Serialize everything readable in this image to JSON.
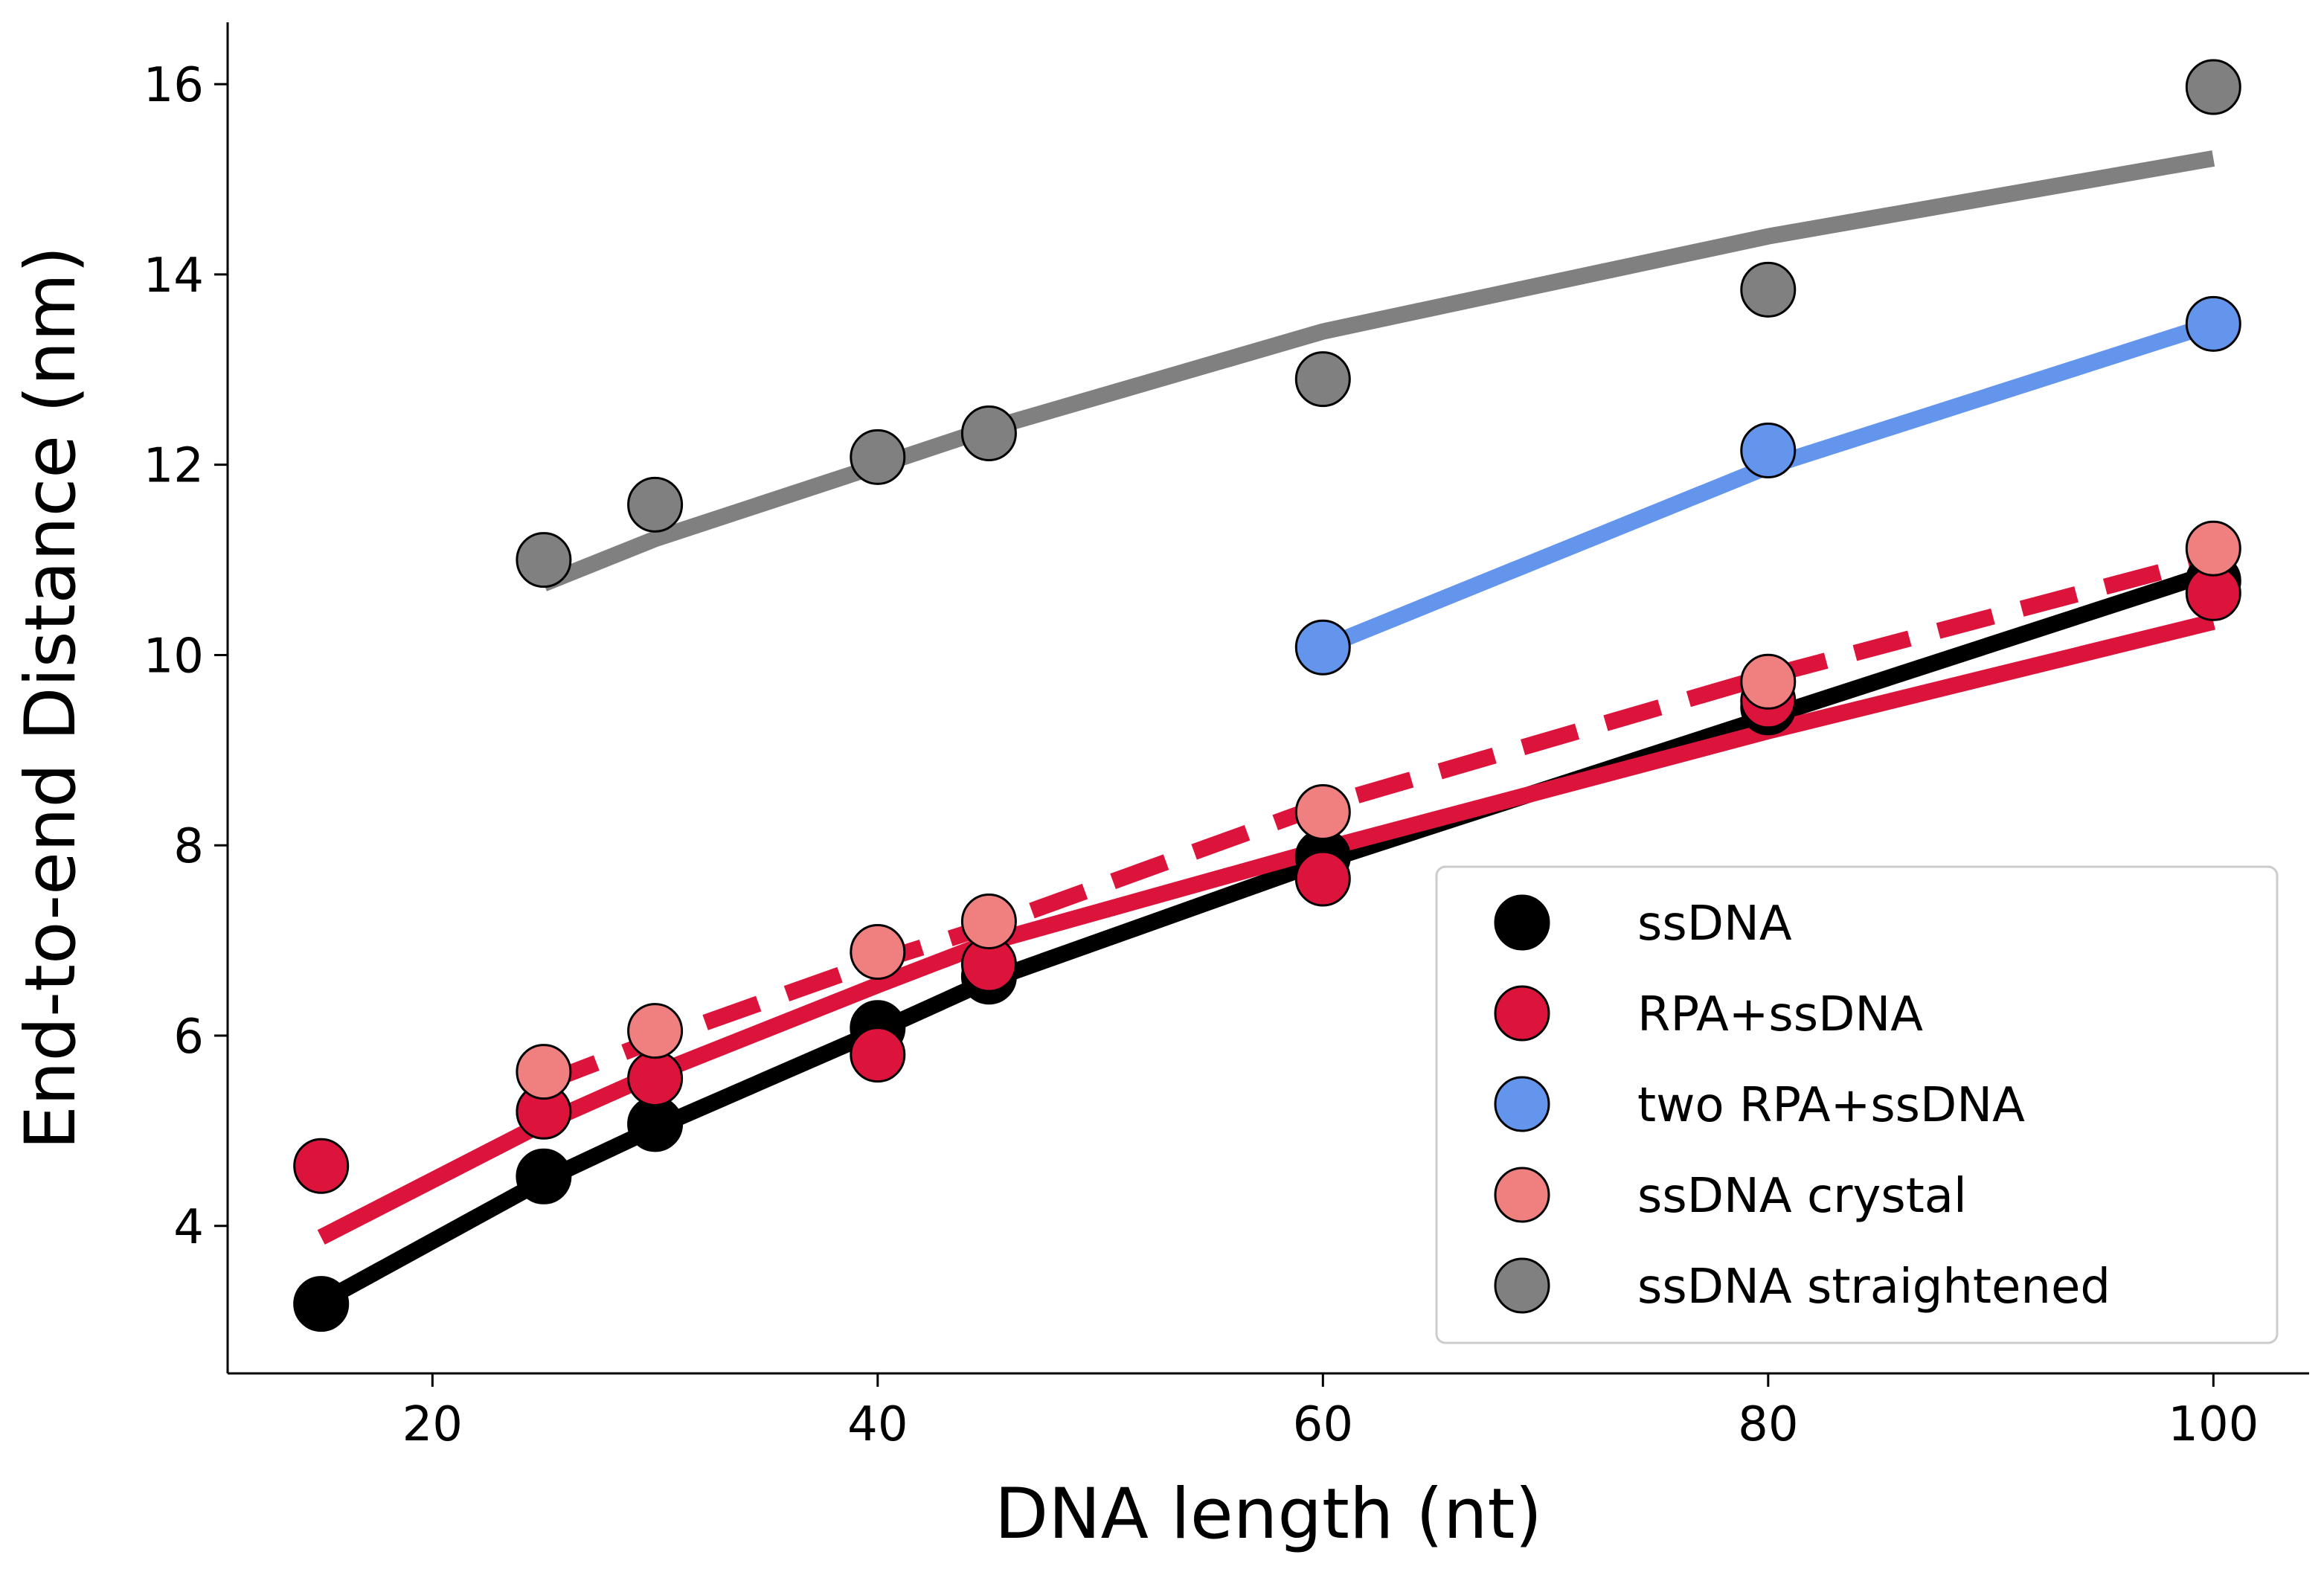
{
  "chart_data": {
    "type": "scatter",
    "xlabel": "DNA length (nt)",
    "ylabel": "End-to-end Distance (nm)",
    "xlim": [
      10.8,
      104.3
    ],
    "ylim": [
      2.45,
      16.65
    ],
    "x_ticks": [
      20,
      40,
      60,
      80,
      100
    ],
    "y_ticks": [
      4,
      6,
      8,
      10,
      12,
      14,
      16
    ],
    "grid": false,
    "legend_position": "lower-right",
    "series": [
      {
        "name": "ssDNA",
        "color": "#000000",
        "points": {
          "x": [
            15,
            25,
            30,
            40,
            45,
            60,
            80,
            100
          ],
          "y": [
            3.18,
            4.52,
            5.07,
            6.08,
            6.62,
            7.88,
            9.45,
            10.78
          ]
        },
        "fit": {
          "x": [
            15,
            25,
            30,
            40,
            45,
            60,
            80,
            100
          ],
          "y": [
            3.2,
            4.48,
            5.03,
            6.05,
            6.58,
            7.83,
            9.35,
            10.87
          ],
          "style": "solid"
        }
      },
      {
        "name": "RPA+ssDNA",
        "color": "#dc143c",
        "points": {
          "x": [
            15,
            25,
            30,
            40,
            45,
            60,
            80,
            100
          ],
          "y": [
            4.63,
            5.2,
            5.55,
            5.8,
            6.75,
            7.65,
            9.52,
            10.65
          ]
        },
        "fit": {
          "x": [
            15,
            25,
            30,
            40,
            45,
            60,
            80,
            100
          ],
          "y": [
            3.88,
            5.08,
            5.6,
            6.53,
            6.98,
            7.96,
            9.2,
            10.35
          ],
          "style": "solid"
        }
      },
      {
        "name": "two RPA+ssDNA",
        "color": "#6495ed",
        "points": {
          "x": [
            60,
            80,
            100
          ],
          "y": [
            10.08,
            12.15,
            13.48
          ]
        },
        "fit": {
          "x": [
            60,
            80,
            100
          ],
          "y": [
            10.08,
            11.98,
            13.48
          ],
          "style": "solid"
        }
      },
      {
        "name": "ssDNA crystal",
        "color": "#f08080",
        "points": {
          "x": [
            25,
            30,
            40,
            45,
            60,
            80,
            100
          ],
          "y": [
            5.62,
            6.05,
            6.88,
            7.2,
            8.35,
            9.72,
            11.12
          ]
        },
        "fit": {
          "x": [
            25,
            30,
            40,
            45,
            60,
            80,
            100
          ],
          "y": [
            5.5,
            5.95,
            6.78,
            7.15,
            8.42,
            9.78,
            11.02
          ],
          "style": "dashed",
          "color": "#dc143c"
        }
      },
      {
        "name": "ssDNA straightened",
        "color": "#808080",
        "points": {
          "x": [
            25,
            30,
            40,
            45,
            60,
            80,
            100
          ],
          "y": [
            11.0,
            11.58,
            12.08,
            12.33,
            12.9,
            13.84,
            15.97
          ]
        },
        "fit": {
          "x": [
            25,
            30,
            40,
            45,
            60,
            80,
            100
          ],
          "y": [
            10.75,
            11.22,
            11.99,
            12.38,
            13.4,
            14.4,
            15.22
          ],
          "style": "solid"
        }
      }
    ]
  }
}
